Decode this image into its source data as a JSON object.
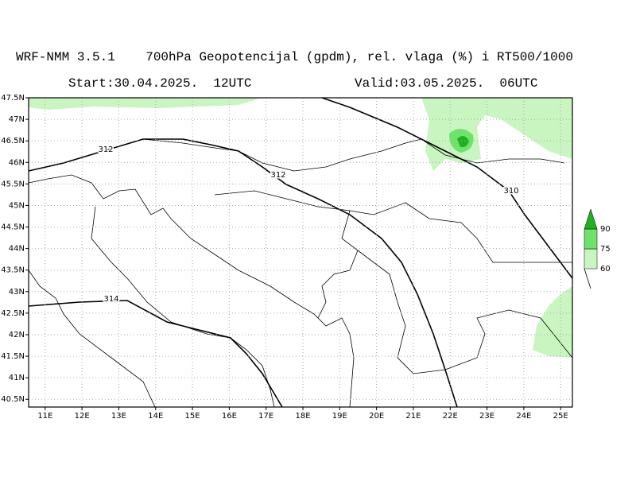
{
  "header": {
    "title": "WRF-NMM 3.5.1    700hPa Geopotencijal (gpdm), rel. vlaga (%) i RT500/1000",
    "start": "Start:30.04.2025.  12UTC",
    "valid": "Valid:03.05.2025.  06UTC"
  },
  "map": {
    "xlim": [
      10.55,
      25.32
    ],
    "ylim": [
      40.32,
      47.5
    ],
    "xticks": [
      {
        "value": 11,
        "label": "11E"
      },
      {
        "value": 12,
        "label": "12E"
      },
      {
        "value": 13,
        "label": "13E"
      },
      {
        "value": 14,
        "label": "14E"
      },
      {
        "value": 15,
        "label": "15E"
      },
      {
        "value": 16,
        "label": "16E"
      },
      {
        "value": 17,
        "label": "17E"
      },
      {
        "value": 18,
        "label": "18E"
      },
      {
        "value": 19,
        "label": "19E"
      },
      {
        "value": 20,
        "label": "20E"
      },
      {
        "value": 21,
        "label": "21E"
      },
      {
        "value": 22,
        "label": "22E"
      },
      {
        "value": 23,
        "label": "23E"
      },
      {
        "value": 24,
        "label": "24E"
      },
      {
        "value": 25,
        "label": "25E"
      }
    ],
    "yticks": [
      {
        "value": 47.5,
        "label": "47.5N"
      },
      {
        "value": 47,
        "label": "47N"
      },
      {
        "value": 46.5,
        "label": "46.5N"
      },
      {
        "value": 46,
        "label": "46N"
      },
      {
        "value": 45.5,
        "label": "45.5N"
      },
      {
        "value": 45,
        "label": "45N"
      },
      {
        "value": 44.5,
        "label": "44.5N"
      },
      {
        "value": 44,
        "label": "44N"
      },
      {
        "value": 43.5,
        "label": "43.5N"
      },
      {
        "value": 43,
        "label": "43N"
      },
      {
        "value": 42.5,
        "label": "42.5N"
      },
      {
        "value": 42,
        "label": "42N"
      },
      {
        "value": 41.5,
        "label": "41.5N"
      },
      {
        "value": 41,
        "label": "41N"
      },
      {
        "value": 40.5,
        "label": "40.5N"
      }
    ],
    "contour_labels": [
      "312",
      "312",
      "310",
      "314"
    ]
  },
  "legend": {
    "levels": [
      60,
      75,
      90
    ],
    "colors": [
      "#c8f5c0",
      "#6ee36a",
      "#20b020"
    ]
  }
}
